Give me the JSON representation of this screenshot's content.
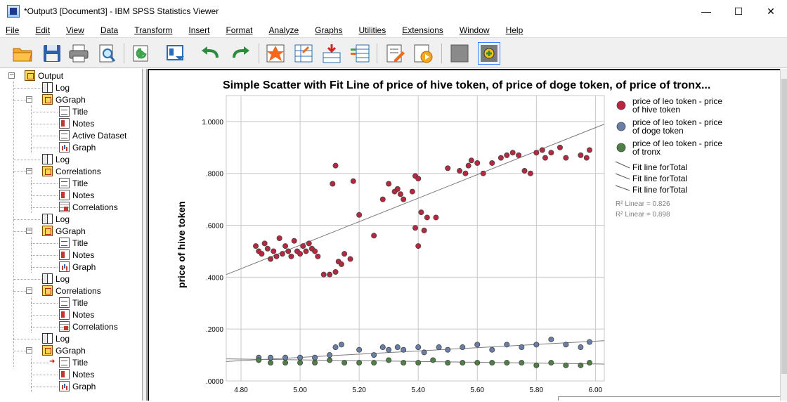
{
  "window": {
    "title": "*Output3 [Document3] - IBM SPSS Statistics Viewer",
    "controls": {
      "minimize": "—",
      "maximize": "☐",
      "close": "✕"
    }
  },
  "menu": [
    "File",
    "Edit",
    "View",
    "Data",
    "Transform",
    "Insert",
    "Format",
    "Analyze",
    "Graphs",
    "Utilities",
    "Extensions",
    "Window",
    "Help"
  ],
  "toolbar": [
    "open-icon",
    "save-icon",
    "print-icon",
    "print-preview-icon",
    "export-icon",
    "recall-dialog-icon",
    "undo-icon",
    "redo-icon",
    "goto-case-icon",
    "goto-variable-icon",
    "insert-cases-icon",
    "variables-icon",
    "edit-syntax-icon",
    "run-script-icon",
    "designate-window-icon",
    "add-output-icon"
  ],
  "tree": {
    "items": [
      {
        "label": "Output",
        "icon": "output-icon",
        "level": 0,
        "expander": "−"
      },
      {
        "label": "Log",
        "icon": "log-icon",
        "level": 1
      },
      {
        "label": "GGraph",
        "icon": "output-icon",
        "level": 1,
        "expander": "−"
      },
      {
        "label": "Title",
        "icon": "title-icon",
        "level": 2
      },
      {
        "label": "Notes",
        "icon": "notes-icon",
        "level": 2
      },
      {
        "label": "Active Dataset",
        "icon": "title-icon",
        "level": 2
      },
      {
        "label": "Graph",
        "icon": "graph-icon",
        "level": 2
      },
      {
        "label": "Log",
        "icon": "log-icon",
        "level": 1
      },
      {
        "label": "Correlations",
        "icon": "output-icon",
        "level": 1,
        "expander": "−"
      },
      {
        "label": "Title",
        "icon": "title-icon",
        "level": 2
      },
      {
        "label": "Notes",
        "icon": "notes-icon",
        "level": 2
      },
      {
        "label": "Correlations",
        "icon": "table-icon",
        "level": 2
      },
      {
        "label": "Log",
        "icon": "log-icon",
        "level": 1
      },
      {
        "label": "GGraph",
        "icon": "output-icon",
        "level": 1,
        "expander": "−"
      },
      {
        "label": "Title",
        "icon": "title-icon",
        "level": 2
      },
      {
        "label": "Notes",
        "icon": "notes-icon",
        "level": 2
      },
      {
        "label": "Graph",
        "icon": "graph-icon",
        "level": 2
      },
      {
        "label": "Log",
        "icon": "log-icon",
        "level": 1
      },
      {
        "label": "Correlations",
        "icon": "output-icon",
        "level": 1,
        "expander": "−"
      },
      {
        "label": "Title",
        "icon": "title-icon",
        "level": 2
      },
      {
        "label": "Notes",
        "icon": "notes-icon",
        "level": 2
      },
      {
        "label": "Correlations",
        "icon": "table-icon",
        "level": 2
      },
      {
        "label": "Log",
        "icon": "log-icon",
        "level": 1
      },
      {
        "label": "GGraph",
        "icon": "output-icon",
        "level": 1,
        "expander": "−"
      },
      {
        "label": "Title",
        "icon": "title-icon",
        "level": 2,
        "current": true
      },
      {
        "label": "Notes",
        "icon": "notes-icon",
        "level": 2
      },
      {
        "label": "Graph",
        "icon": "graph-icon",
        "level": 2
      }
    ]
  },
  "chart_data": {
    "type": "scatter",
    "title": "Simple Scatter with Fit Line of price of hive token,  of price of doge token,  of price of tronx...",
    "xlabel": "",
    "ylabel": "price of hive token",
    "xlim": [
      4.75,
      6.03
    ],
    "ylim": [
      0,
      1.1
    ],
    "xticks": [
      "4.80",
      "5.00",
      "5.20",
      "5.40",
      "5.60",
      "5.80",
      "6.00"
    ],
    "yticks": [
      ".0000",
      ".2000",
      ".4000",
      ".6000",
      ".8000",
      "1.0000"
    ],
    "grid": true,
    "legend_position": "right",
    "colors": {
      "hive": "#b5283f",
      "doge": "#6a7fa8",
      "tronx": "#4e7f44"
    },
    "series": [
      {
        "name": "price of leo token - price of hive token",
        "color": "#b5283f",
        "points": [
          [
            4.85,
            0.52
          ],
          [
            4.86,
            0.5
          ],
          [
            4.87,
            0.49
          ],
          [
            4.88,
            0.53
          ],
          [
            4.89,
            0.51
          ],
          [
            4.9,
            0.47
          ],
          [
            4.91,
            0.5
          ],
          [
            4.92,
            0.48
          ],
          [
            4.93,
            0.55
          ],
          [
            4.94,
            0.49
          ],
          [
            4.95,
            0.52
          ],
          [
            4.96,
            0.5
          ],
          [
            4.97,
            0.48
          ],
          [
            4.98,
            0.54
          ],
          [
            4.99,
            0.5
          ],
          [
            5.0,
            0.49
          ],
          [
            5.01,
            0.52
          ],
          [
            5.02,
            0.5
          ],
          [
            5.03,
            0.53
          ],
          [
            5.04,
            0.51
          ],
          [
            5.05,
            0.5
          ],
          [
            5.06,
            0.48
          ],
          [
            5.08,
            0.41
          ],
          [
            5.1,
            0.41
          ],
          [
            5.12,
            0.42
          ],
          [
            5.13,
            0.46
          ],
          [
            5.14,
            0.45
          ],
          [
            5.15,
            0.49
          ],
          [
            5.17,
            0.47
          ],
          [
            5.11,
            0.76
          ],
          [
            5.12,
            0.83
          ],
          [
            5.18,
            0.77
          ],
          [
            5.2,
            0.64
          ],
          [
            5.25,
            0.56
          ],
          [
            5.28,
            0.7
          ],
          [
            5.3,
            0.76
          ],
          [
            5.32,
            0.73
          ],
          [
            5.33,
            0.74
          ],
          [
            5.34,
            0.72
          ],
          [
            5.35,
            0.7
          ],
          [
            5.38,
            0.73
          ],
          [
            5.39,
            0.79
          ],
          [
            5.4,
            0.78
          ],
          [
            5.39,
            0.59
          ],
          [
            5.4,
            0.52
          ],
          [
            5.42,
            0.58
          ],
          [
            5.41,
            0.65
          ],
          [
            5.43,
            0.63
          ],
          [
            5.46,
            0.63
          ],
          [
            5.5,
            0.82
          ],
          [
            5.54,
            0.81
          ],
          [
            5.56,
            0.8
          ],
          [
            5.57,
            0.83
          ],
          [
            5.58,
            0.85
          ],
          [
            5.6,
            0.84
          ],
          [
            5.62,
            0.8
          ],
          [
            5.65,
            0.84
          ],
          [
            5.68,
            0.86
          ],
          [
            5.7,
            0.87
          ],
          [
            5.72,
            0.88
          ],
          [
            5.74,
            0.87
          ],
          [
            5.76,
            0.81
          ],
          [
            5.78,
            0.8
          ],
          [
            5.8,
            0.88
          ],
          [
            5.82,
            0.89
          ],
          [
            5.83,
            0.86
          ],
          [
            5.85,
            0.88
          ],
          [
            5.88,
            0.9
          ],
          [
            5.9,
            0.86
          ],
          [
            5.95,
            0.87
          ],
          [
            5.97,
            0.86
          ],
          [
            5.98,
            0.89
          ]
        ]
      },
      {
        "name": "price of leo token - price of doge token",
        "color": "#6a7fa8",
        "points": [
          [
            4.86,
            0.09
          ],
          [
            4.9,
            0.09
          ],
          [
            4.95,
            0.09
          ],
          [
            5.0,
            0.09
          ],
          [
            5.05,
            0.09
          ],
          [
            5.1,
            0.1
          ],
          [
            5.12,
            0.13
          ],
          [
            5.14,
            0.14
          ],
          [
            5.2,
            0.12
          ],
          [
            5.25,
            0.1
          ],
          [
            5.28,
            0.13
          ],
          [
            5.3,
            0.12
          ],
          [
            5.33,
            0.13
          ],
          [
            5.35,
            0.12
          ],
          [
            5.4,
            0.13
          ],
          [
            5.42,
            0.11
          ],
          [
            5.47,
            0.13
          ],
          [
            5.5,
            0.12
          ],
          [
            5.55,
            0.13
          ],
          [
            5.6,
            0.14
          ],
          [
            5.65,
            0.12
          ],
          [
            5.7,
            0.14
          ],
          [
            5.75,
            0.13
          ],
          [
            5.8,
            0.14
          ],
          [
            5.85,
            0.16
          ],
          [
            5.9,
            0.14
          ],
          [
            5.95,
            0.13
          ],
          [
            5.98,
            0.15
          ]
        ]
      },
      {
        "name": "price of leo token - price of tronx",
        "color": "#4e7f44",
        "points": [
          [
            4.86,
            0.08
          ],
          [
            4.9,
            0.07
          ],
          [
            4.95,
            0.07
          ],
          [
            5.0,
            0.07
          ],
          [
            5.05,
            0.07
          ],
          [
            5.1,
            0.08
          ],
          [
            5.15,
            0.07
          ],
          [
            5.2,
            0.07
          ],
          [
            5.25,
            0.07
          ],
          [
            5.3,
            0.08
          ],
          [
            5.35,
            0.07
          ],
          [
            5.4,
            0.07
          ],
          [
            5.45,
            0.08
          ],
          [
            5.5,
            0.07
          ],
          [
            5.55,
            0.07
          ],
          [
            5.6,
            0.07
          ],
          [
            5.65,
            0.07
          ],
          [
            5.7,
            0.07
          ],
          [
            5.75,
            0.07
          ],
          [
            5.8,
            0.06
          ],
          [
            5.85,
            0.07
          ],
          [
            5.9,
            0.06
          ],
          [
            5.95,
            0.06
          ],
          [
            5.98,
            0.07
          ]
        ]
      }
    ],
    "fit_lines": [
      {
        "label": "Fit line forTotal",
        "from": [
          4.75,
          0.41
        ],
        "to": [
          6.03,
          0.99
        ]
      },
      {
        "label": "Fit line forTotal",
        "from": [
          4.75,
          0.075
        ],
        "to": [
          6.03,
          0.155
        ]
      },
      {
        "label": "Fit line forTotal",
        "from": [
          4.75,
          0.085
        ],
        "to": [
          6.03,
          0.065
        ]
      }
    ],
    "r2_labels": [
      "R² Linear = 0.826",
      "R² Linear = 0.898"
    ]
  }
}
